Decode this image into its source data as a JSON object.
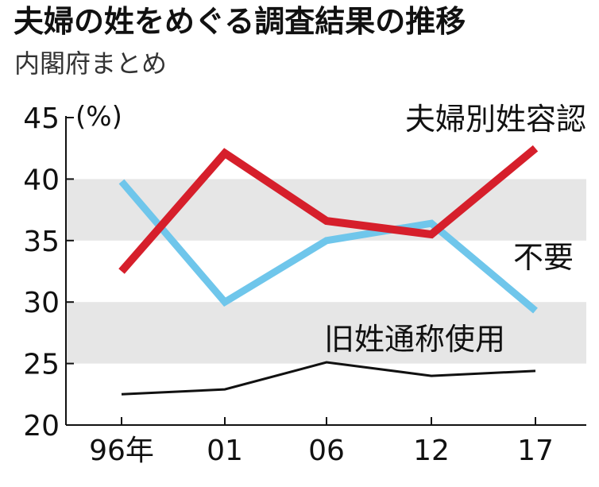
{
  "title": "夫婦の姓をめぐる調査結果の推移",
  "subtitle": "内閣府まとめ",
  "chart_data": {
    "type": "line",
    "x": [
      "96年",
      "01",
      "06",
      "12",
      "17"
    ],
    "ylim": [
      20,
      45
    ],
    "yticks": [
      20,
      25,
      30,
      35,
      40,
      45
    ],
    "y_unit": "(%)",
    "grid": false,
    "bands": [
      [
        25,
        30
      ],
      [
        35,
        40
      ]
    ],
    "series": [
      {
        "name": "夫婦別姓容認",
        "values": [
          32.5,
          42.1,
          36.6,
          35.5,
          42.5
        ],
        "color": "#d61f2b"
      },
      {
        "name": "不要",
        "values": [
          39.8,
          30.0,
          35.0,
          36.4,
          29.3
        ],
        "color": "#6fc6eb"
      },
      {
        "name": "旧姓通称使用",
        "values": [
          22.5,
          22.9,
          25.1,
          24.0,
          24.4
        ],
        "color": "#111111"
      }
    ]
  }
}
